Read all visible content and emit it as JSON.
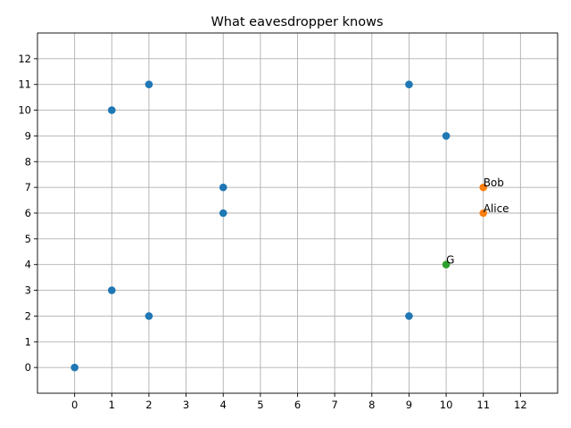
{
  "chart_data": {
    "type": "scatter",
    "title": "What eavesdropper knows",
    "xlabel": "",
    "ylabel": "",
    "xlim": [
      -1,
      13
    ],
    "ylim": [
      -1,
      13
    ],
    "xticks": [
      0,
      1,
      2,
      3,
      4,
      5,
      6,
      7,
      8,
      9,
      10,
      11,
      12
    ],
    "yticks": [
      0,
      1,
      2,
      3,
      4,
      5,
      6,
      7,
      8,
      9,
      10,
      11,
      12
    ],
    "grid": true,
    "series": [
      {
        "color": "#1f77b4",
        "points": [
          {
            "x": 0,
            "y": 0
          },
          {
            "x": 1,
            "y": 3
          },
          {
            "x": 1,
            "y": 10
          },
          {
            "x": 2,
            "y": 2
          },
          {
            "x": 2,
            "y": 11
          },
          {
            "x": 4,
            "y": 6
          },
          {
            "x": 4,
            "y": 7
          },
          {
            "x": 9,
            "y": 2
          },
          {
            "x": 9,
            "y": 11
          },
          {
            "x": 10,
            "y": 9
          }
        ]
      },
      {
        "color": "#ff7f0e",
        "points": [
          {
            "x": 11,
            "y": 6,
            "label": "Alice"
          },
          {
            "x": 11,
            "y": 7,
            "label": "Bob"
          }
        ]
      },
      {
        "color": "#2ca02c",
        "points": [
          {
            "x": 10,
            "y": 4,
            "label": "G"
          }
        ]
      }
    ]
  }
}
